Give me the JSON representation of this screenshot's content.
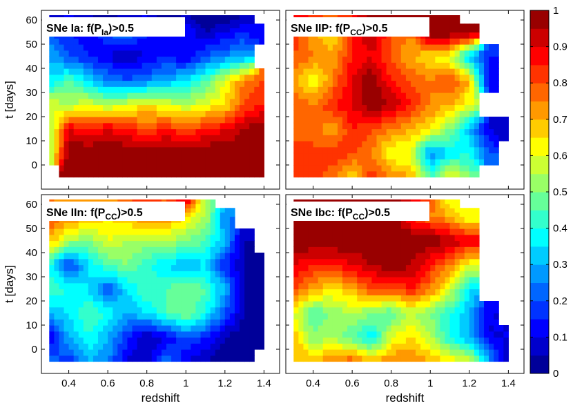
{
  "chart_data": {
    "type": "heatmap",
    "xlabel": "redshift",
    "ylabel": "t [days]",
    "xlim": [
      0.26,
      1.48
    ],
    "ylim": [
      -10,
      64
    ],
    "xticks": [
      0.4,
      0.6,
      0.8,
      1,
      1.2,
      1.4
    ],
    "yticks": [
      0,
      10,
      20,
      30,
      40,
      50,
      60
    ],
    "colorbar": {
      "range": [
        0,
        1
      ],
      "ticks": [
        0,
        0.1,
        0.2,
        0.3,
        0.4,
        0.5,
        0.6,
        0.7,
        0.8,
        0.9,
        1
      ]
    },
    "grid_x": [
      0.3,
      0.4,
      0.5,
      0.6,
      0.7,
      0.8,
      0.9,
      1.0,
      1.1,
      1.2,
      1.3,
      1.4
    ],
    "grid_y": [
      -5,
      5,
      15,
      25,
      35,
      45,
      55,
      62
    ],
    "panels": [
      {
        "id": "ia",
        "title_main": "SNe Ia: f(P",
        "title_sub": "Ia",
        "title_end": ")>0.5",
        "z": [
          [
            null,
            1.0,
            1.0,
            1.0,
            1.0,
            1.0,
            1.0,
            1.0,
            1.0,
            1.0,
            1.0,
            1.0
          ],
          [
            0.5,
            1.0,
            1.0,
            1.0,
            1.0,
            1.0,
            1.0,
            1.0,
            1.0,
            1.0,
            1.0,
            1.0
          ],
          [
            0.5,
            0.9,
            0.85,
            0.9,
            0.85,
            0.8,
            0.85,
            0.8,
            0.85,
            0.9,
            0.95,
            1.0
          ],
          [
            0.6,
            0.55,
            0.6,
            0.55,
            0.6,
            0.65,
            0.6,
            0.55,
            0.6,
            0.65,
            0.8,
            0.85
          ],
          [
            0.35,
            0.45,
            0.35,
            0.25,
            0.2,
            0.25,
            0.3,
            0.35,
            0.45,
            0.6,
            0.75,
            0.8
          ],
          [
            0.3,
            0.2,
            0.15,
            0.1,
            0.05,
            0.1,
            0.15,
            0.1,
            0.2,
            0.25,
            0.3,
            null
          ],
          [
            0.2,
            0.15,
            0.1,
            0.2,
            0.25,
            0.15,
            0.1,
            0.15,
            0.05,
            0.1,
            0.15,
            0.1
          ],
          [
            0.05,
            0.1,
            0.05,
            0.0,
            0.05,
            0.1,
            0.0,
            0.05,
            0.0,
            0.0,
            0.05,
            null
          ]
        ]
      },
      {
        "id": "iip",
        "title_main": "SNe IIP: f(P",
        "title_sub": "CC",
        "title_end": ")>0.5",
        "z": [
          [
            0.8,
            0.85,
            0.75,
            0.65,
            0.85,
            0.75,
            0.7,
            0.45,
            0.65,
            0.5,
            null,
            null
          ],
          [
            0.85,
            0.8,
            0.85,
            0.8,
            0.75,
            0.6,
            0.6,
            0.25,
            0.35,
            0.4,
            0.2,
            null
          ],
          [
            0.75,
            0.8,
            0.7,
            0.85,
            0.8,
            0.75,
            0.7,
            0.65,
            0.5,
            0.3,
            0.1,
            0.05
          ],
          [
            0.8,
            0.75,
            0.85,
            0.9,
            1.0,
            0.95,
            0.85,
            0.75,
            0.7,
            0.6,
            null,
            null
          ],
          [
            0.7,
            0.6,
            0.75,
            0.9,
            1.0,
            0.85,
            0.8,
            0.75,
            0.8,
            0.7,
            0.1,
            null
          ],
          [
            0.8,
            0.75,
            0.7,
            0.85,
            0.9,
            0.8,
            0.7,
            0.65,
            0.6,
            0.3,
            0.15,
            null
          ],
          [
            0.85,
            0.7,
            0.65,
            0.85,
            0.95,
            0.8,
            0.75,
            1.0,
            1.0,
            1.0,
            null,
            null
          ],
          [
            0.9,
            0.85,
            0.8,
            0.85,
            1.0,
            1.0,
            1.0,
            1.0,
            1.0,
            null,
            null,
            null
          ]
        ]
      },
      {
        "id": "iin",
        "title_main": "SNe IIn: f(P",
        "title_sub": "CC",
        "title_end": ")>0.5",
        "z": [
          [
            0.25,
            0.15,
            0.3,
            0.25,
            0.1,
            0.05,
            0.25,
            0.1,
            0.05,
            0.0,
            0.0,
            null
          ],
          [
            0.1,
            0.3,
            0.4,
            0.3,
            0.15,
            0.05,
            0.1,
            0.2,
            0.15,
            0.05,
            0.0,
            0.0
          ],
          [
            0.3,
            0.35,
            0.45,
            0.4,
            0.3,
            0.35,
            0.45,
            0.5,
            0.4,
            0.2,
            0.05,
            0.0
          ],
          [
            0.45,
            0.4,
            0.35,
            0.2,
            0.35,
            0.45,
            0.45,
            0.5,
            0.45,
            0.3,
            0.05,
            0.0
          ],
          [
            0.4,
            0.15,
            0.35,
            0.45,
            0.5,
            0.4,
            0.35,
            0.3,
            0.35,
            0.15,
            0.05,
            0.0
          ],
          [
            0.7,
            0.55,
            0.5,
            0.6,
            0.55,
            0.55,
            0.55,
            0.5,
            0.45,
            0.3,
            0.05,
            null
          ],
          [
            0.8,
            0.75,
            0.7,
            0.65,
            0.7,
            0.75,
            0.75,
            0.65,
            0.55,
            0.25,
            null,
            null
          ],
          [
            0.75,
            0.7,
            0.75,
            0.7,
            0.8,
            0.85,
            0.8,
            0.95,
            0.5,
            null,
            null,
            null
          ]
        ]
      },
      {
        "id": "ibc",
        "title_main": "SNe Ibc: f(P",
        "title_sub": "CC",
        "title_end": ")>0.5",
        "z": [
          [
            0.7,
            0.7,
            0.75,
            0.8,
            0.7,
            0.75,
            0.75,
            0.7,
            0.65,
            0.6,
            0.3,
            0.05
          ],
          [
            0.7,
            0.5,
            0.55,
            0.45,
            0.35,
            0.6,
            0.65,
            0.55,
            0.4,
            0.3,
            0.1,
            0.1
          ],
          [
            0.6,
            0.45,
            0.5,
            0.55,
            0.5,
            0.45,
            0.55,
            0.5,
            0.4,
            0.3,
            0.1,
            null
          ],
          [
            0.8,
            0.7,
            0.65,
            0.7,
            0.8,
            0.8,
            0.85,
            0.75,
            0.6,
            0.35,
            null,
            null
          ],
          [
            0.9,
            0.85,
            0.85,
            0.9,
            0.95,
            1.0,
            0.95,
            0.85,
            0.75,
            0.6,
            null,
            null
          ],
          [
            1.0,
            1.0,
            1.0,
            1.0,
            1.0,
            1.0,
            1.0,
            1.0,
            0.95,
            0.9,
            null,
            null
          ],
          [
            1.0,
            1.0,
            0.95,
            1.0,
            1.0,
            1.0,
            0.85,
            0.75,
            0.7,
            0.6,
            null,
            null
          ],
          [
            0.95,
            1.0,
            1.0,
            1.0,
            1.0,
            1.0,
            0.9,
            0.8,
            0.6,
            null,
            null,
            null
          ]
        ]
      }
    ]
  }
}
